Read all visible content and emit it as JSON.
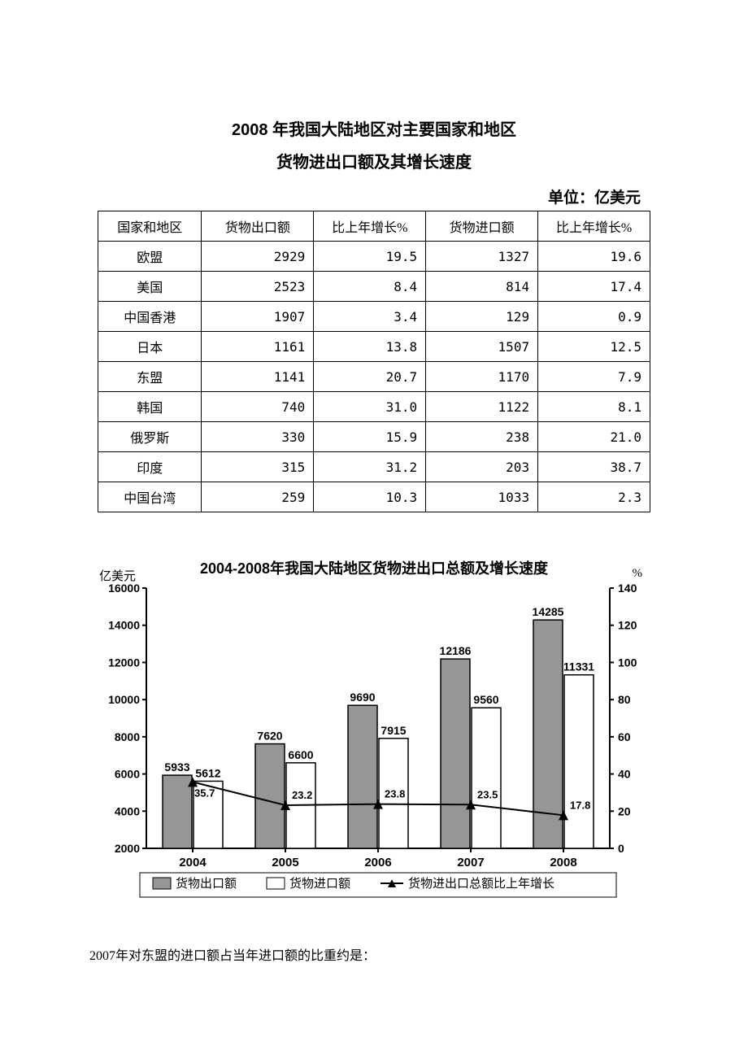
{
  "title": {
    "line1": "2008 年我国大陆地区对主要国家和地区",
    "line2": "货物进出口额及其增长速度",
    "unit": "单位：亿美元"
  },
  "table": {
    "columns": [
      "国家和地区",
      "货物出口额",
      "比上年增长%",
      "货物进口额",
      "比上年增长%"
    ],
    "rows": [
      [
        "欧盟",
        "2929",
        "19.5",
        "1327",
        "19.6"
      ],
      [
        "美国",
        "2523",
        "8.4",
        "814",
        "17.4"
      ],
      [
        "中国香港",
        "1907",
        "3.4",
        "129",
        "0.9"
      ],
      [
        "日本",
        "1161",
        "13.8",
        "1507",
        "12.5"
      ],
      [
        "东盟",
        "1141",
        "20.7",
        "1170",
        "7.9"
      ],
      [
        "韩国",
        "740",
        "31.0",
        "1122",
        "8.1"
      ],
      [
        "俄罗斯",
        "330",
        "15.9",
        "238",
        "21.0"
      ],
      [
        "印度",
        "315",
        "31.2",
        "203",
        "38.7"
      ],
      [
        "中国台湾",
        "259",
        "10.3",
        "1033",
        "2.3"
      ]
    ]
  },
  "chart": {
    "title": "2004-2008年我国大陆地区货物进出口总额及增长速度",
    "left_unit": "亿美元",
    "right_unit": "%",
    "years": [
      "2004",
      "2005",
      "2006",
      "2007",
      "2008"
    ],
    "exports": [
      5933,
      7620,
      9690,
      12186,
      14285
    ],
    "imports": [
      5612,
      6600,
      7915,
      9560,
      11331
    ],
    "growth": [
      35.7,
      23.2,
      23.8,
      23.5,
      17.8
    ],
    "ylim_left": [
      2000,
      16000
    ],
    "ytick_left": [
      2000,
      4000,
      6000,
      8000,
      10000,
      12000,
      14000,
      16000
    ],
    "ylim_right": [
      0,
      140
    ],
    "ytick_right": [
      0,
      20,
      40,
      60,
      80,
      100,
      120,
      140
    ],
    "colors": {
      "export_fill": "#969696",
      "import_fill": "#ffffff",
      "border": "#000000",
      "line": "#000000",
      "marker_fill": "#000000"
    },
    "legend": {
      "export": "货物出口额",
      "import": "货物进口额",
      "growth": "货物进出口总额比上年增长"
    }
  },
  "question": "2007年对东盟的进口额占当年进口额的比重约是："
}
